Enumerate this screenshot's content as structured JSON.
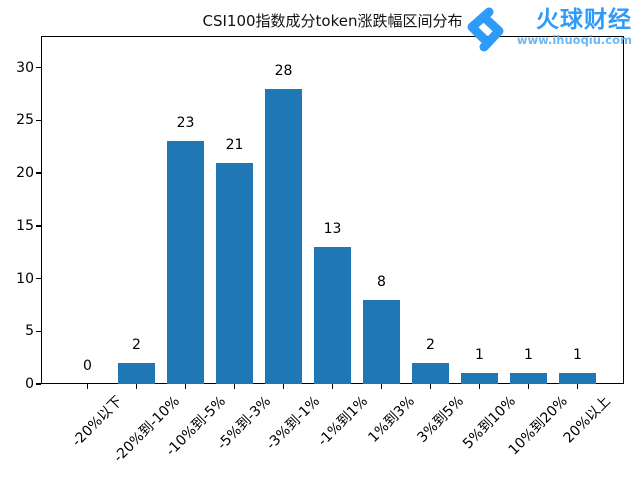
{
  "figure": {
    "background": "#ffffff"
  },
  "logo": {
    "brand": "火球财经",
    "website": "www.ihuoqiu.com",
    "brand_color": "#2f9bf8",
    "website_color": "#6db8f7",
    "icon": "fireball-logo-icon"
  },
  "chart_data": {
    "type": "bar",
    "title": "CSI100指数成分token涨跌幅区间分布",
    "categories": [
      "-20%以下",
      "-20%到-10%",
      "-10%到-5%",
      "-5%到-3%",
      "-3%到-1%",
      "-1%到1%",
      "1%到3%",
      "3%到5%",
      "5%到10%",
      "10%到20%",
      "20%以上"
    ],
    "values": [
      0,
      2,
      23,
      21,
      28,
      13,
      8,
      2,
      1,
      1,
      1
    ],
    "bar_color": "#1f77b4",
    "bar_labels_shown": true,
    "xlabel": "",
    "ylabel": "",
    "yticks": [
      0,
      5,
      10,
      15,
      20,
      25,
      30
    ],
    "ylim": [
      0,
      33
    ],
    "grid": false,
    "legend": null,
    "x_tick_rotation_deg": 45
  }
}
